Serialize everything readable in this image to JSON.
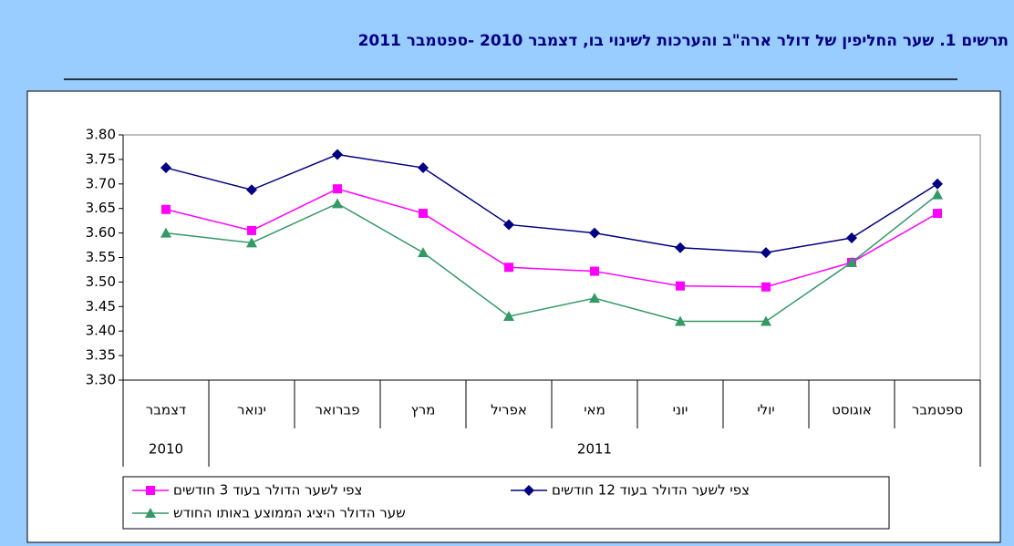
{
  "chart_data": {
    "type": "line",
    "title": "תרשים 1. שער החליפין של דולר ארה\"ב והערכות לשינוי בו, דצמבר 2010 -ספטמבר 2011",
    "categories": [
      "דצמבר",
      "ינואר",
      "פברואר",
      "מרץ",
      "אפריל",
      "מאי",
      "יוני",
      "יולי",
      "אוגוסט",
      "ספטמבר"
    ],
    "year_labels": [
      "2010",
      "2011"
    ],
    "series": [
      {
        "name": "צפי לשער הדולר בעוד 3 חודשים",
        "color": "#ff00ff",
        "marker": "square",
        "values": [
          3.648,
          3.605,
          3.69,
          3.64,
          3.53,
          3.522,
          3.492,
          3.49,
          3.54,
          3.64
        ]
      },
      {
        "name": "צפי לשער הדולר בעוד 12 חודשים",
        "color": "#000080",
        "marker": "diamond",
        "values": [
          3.733,
          3.688,
          3.76,
          3.733,
          3.617,
          3.6,
          3.57,
          3.56,
          3.59,
          3.7
        ]
      },
      {
        "name": "שער הדולר היציג הממוצע באותו החודש",
        "color": "#339966",
        "marker": "triangle",
        "values": [
          3.6,
          3.58,
          3.66,
          3.56,
          3.43,
          3.467,
          3.42,
          3.42,
          3.54,
          3.678
        ]
      }
    ],
    "ylim": [
      3.3,
      3.8
    ],
    "yticks": [
      {
        "value": 3.3,
        "label": "3.30"
      },
      3.35,
      {
        "value": 3.4,
        "label": "3.40"
      },
      3.45,
      {
        "value": 3.5,
        "label": "3.50"
      },
      3.55,
      {
        "value": 3.6,
        "label": "3.60"
      },
      3.65,
      {
        "value": 3.7,
        "label": "3.70"
      },
      3.75,
      {
        "value": 3.8,
        "label": "3.80"
      }
    ],
    "grid": false
  }
}
